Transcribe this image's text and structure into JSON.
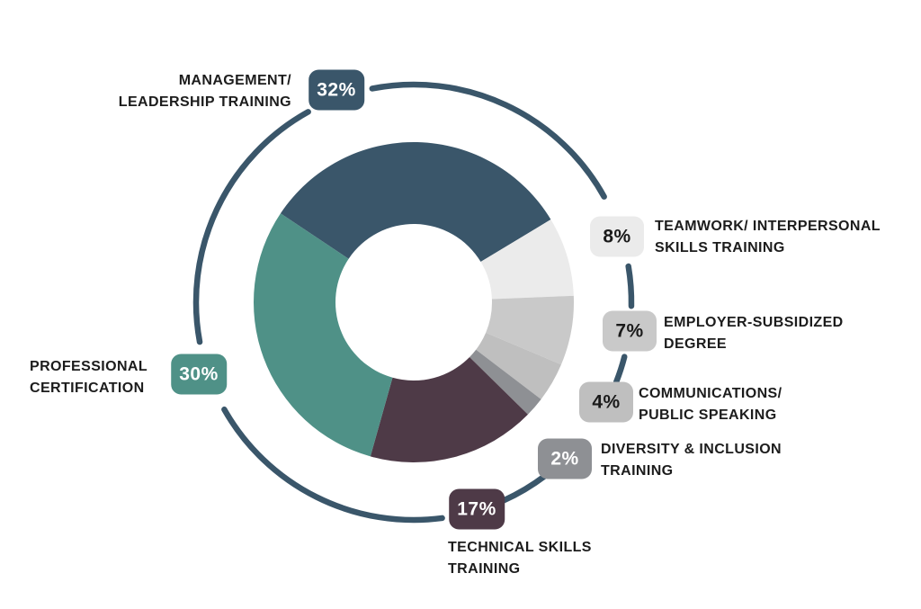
{
  "page": {
    "background": "#ffffff",
    "title": ""
  },
  "chart_data": {
    "type": "pie",
    "donut": true,
    "title": "",
    "unit": "%",
    "start_angle_deg": -56.3,
    "ring_color": "#3a566a",
    "legend_position": "around",
    "slices": [
      {
        "name": "Management/Leadership Training",
        "label": "MANAGEMENT/\nLEADERSHIP TRAINING",
        "value": 32,
        "pct": "32%",
        "color": "#3a566a",
        "badge_text": "#ffffff"
      },
      {
        "name": "Teamwork/Interpersonal Skills Training",
        "label": "TEAMWORK/ INTERPERSONAL\nSKILLS TRAINING",
        "value": 8,
        "pct": "8%",
        "color": "#ebebeb",
        "badge_text": "#1a1a1a"
      },
      {
        "name": "Employer-Subsidized Degree",
        "label": "EMPLOYER-SUBSIDIZED\nDEGREE",
        "value": 7,
        "pct": "7%",
        "color": "#c9c9c9",
        "badge_text": "#1a1a1a"
      },
      {
        "name": "Communications/Public Speaking",
        "label": "COMMUNICATIONS/\nPUBLIC SPEAKING",
        "value": 4,
        "pct": "4%",
        "color": "#bfbfbf",
        "badge_text": "#1a1a1a"
      },
      {
        "name": "Diversity & Inclusion Training",
        "label": "DIVERSITY & INCLUSION\nTRAINING",
        "value": 2,
        "pct": "2%",
        "color": "#8e9094",
        "badge_text": "#ffffff"
      },
      {
        "name": "Technical Skills Training",
        "label": "TECHNICAL SKILLS\nTRAINING",
        "value": 17,
        "pct": "17%",
        "color": "#4e3a47",
        "badge_text": "#ffffff"
      },
      {
        "name": "Professional Certification",
        "label": "PROFESSIONAL\nCERTIFICATION",
        "value": 30,
        "pct": "30%",
        "color": "#4f9187",
        "badge_text": "#ffffff"
      }
    ]
  }
}
